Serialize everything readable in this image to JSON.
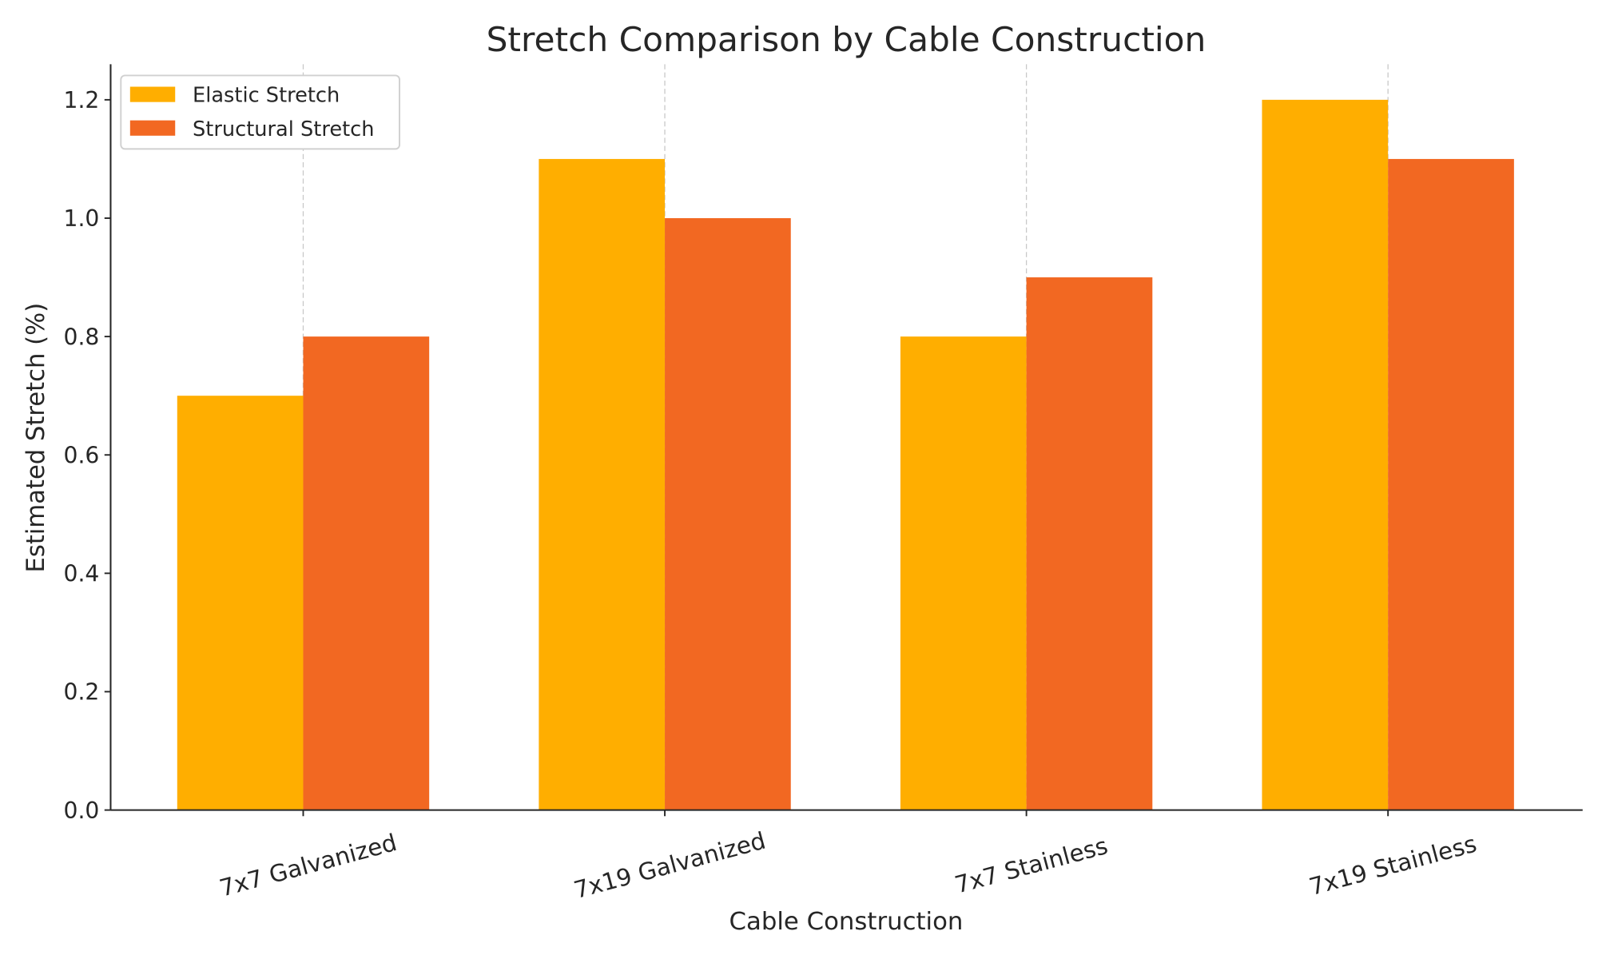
{
  "chart_data": {
    "type": "bar",
    "title": "Stretch Comparison by Cable Construction",
    "xlabel": "Cable Construction",
    "ylabel": "Estimated Stretch (%)",
    "categories": [
      "7x7 Galvanized",
      "7x19 Galvanized",
      "7x7 Stainless",
      "7x19 Stainless"
    ],
    "series": [
      {
        "name": "Elastic Stretch",
        "values": [
          0.7,
          1.1,
          0.8,
          1.2
        ],
        "color": "#FFAE00"
      },
      {
        "name": "Structural Stretch",
        "values": [
          0.8,
          1.0,
          0.9,
          1.1
        ],
        "color": "#F26822"
      }
    ],
    "ylim": [
      0,
      1.26
    ],
    "yticks": [
      "0.0",
      "0.2",
      "0.4",
      "0.6",
      "0.8",
      "1.0",
      "1.2"
    ],
    "grid": "x-dashed",
    "legend": "top-left"
  }
}
